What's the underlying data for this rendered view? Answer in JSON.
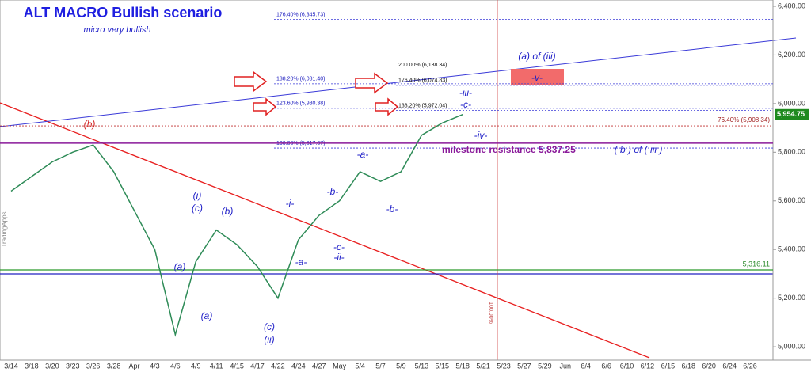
{
  "chart_data": {
    "type": "line",
    "title": "ALT MACRO Bullish scenario",
    "subtitle": "micro very bullish",
    "categories": [
      "3/14",
      "3/18",
      "3/20",
      "3/23",
      "3/26",
      "3/28",
      "Apr",
      "4/3",
      "4/6",
      "4/9",
      "4/11",
      "4/15",
      "4/17",
      "4/22",
      "4/24",
      "4/27",
      "May",
      "5/4",
      "5/7",
      "5/9",
      "5/13",
      "5/15",
      "5/18",
      "5/21",
      "5/23",
      "5/27",
      "5/29",
      "Jun",
      "6/4",
      "6/6",
      "6/10",
      "6/12",
      "6/15",
      "6/18",
      "6/20",
      "6/24",
      "6/26"
    ],
    "series": [
      {
        "color": "#2e8b57",
        "values": [
          5640,
          5700,
          5760,
          5800,
          5830,
          5720,
          5560,
          5400,
          5050,
          5350,
          5480,
          5420,
          5330,
          5200,
          5440,
          5540,
          5600,
          5720,
          5680,
          5720,
          5870,
          5920,
          5955,
          null,
          null,
          null,
          null,
          null,
          null,
          null,
          null,
          null,
          null,
          null,
          null,
          null,
          null
        ]
      }
    ],
    "ylim": [
      4945,
      6426
    ],
    "yticks": [
      {
        "value": 5000,
        "label": "5,000.00"
      },
      {
        "value": 5200,
        "label": "5,200.00"
      },
      {
        "value": 5400,
        "label": "5,400.00"
      },
      {
        "value": 5600,
        "label": "5,600.00"
      },
      {
        "value": 5800,
        "label": "5,800.00"
      },
      {
        "value": 6000,
        "label": "6,000.00"
      },
      {
        "value": 6200,
        "label": "6,200.00"
      },
      {
        "value": 6400,
        "label": "6,400.00"
      }
    ],
    "fib_levels": [
      {
        "label": "176.40% (6,345.73)",
        "value": 6345.73
      },
      {
        "label": "200.00% (6,138.34)",
        "value": 6138.34
      },
      {
        "label": "138.20% (6,081.40)",
        "value": 6081.4
      },
      {
        "label": "176.40% (6,074.83)",
        "value": 6074.83
      },
      {
        "label": "123.60% (5,980.38)",
        "value": 5980.38
      },
      {
        "label": "138.20% (5,972.04)",
        "value": 5972.04
      },
      {
        "label": "100.00% (5,817.07)",
        "value": 5817.07
      }
    ],
    "levels": [
      {
        "label": "milestone resistance 5,837.25",
        "value": 5837.25
      },
      {
        "label": "5,316.11",
        "value": 5316.11
      },
      {
        "label": "76.40% (5,908.34)",
        "value": 5908.34
      },
      {
        "label": "5,954.75",
        "value": 5954.75
      }
    ],
    "wave_labels": [
      "(b)",
      "-iii-",
      "-c-",
      "-iv-",
      "-a-",
      "-b-",
      "-i-",
      "(i)",
      "(c)",
      "(b)",
      "-b-",
      "-c-",
      "-ii-",
      "-a-",
      "(a)",
      "(a)",
      "(c)",
      "(ii)",
      "(a) of (iii)",
      "( b ) of ( iii )",
      "-v-"
    ],
    "vertical_label": "100.00%",
    "watermark": "TradingApps"
  }
}
